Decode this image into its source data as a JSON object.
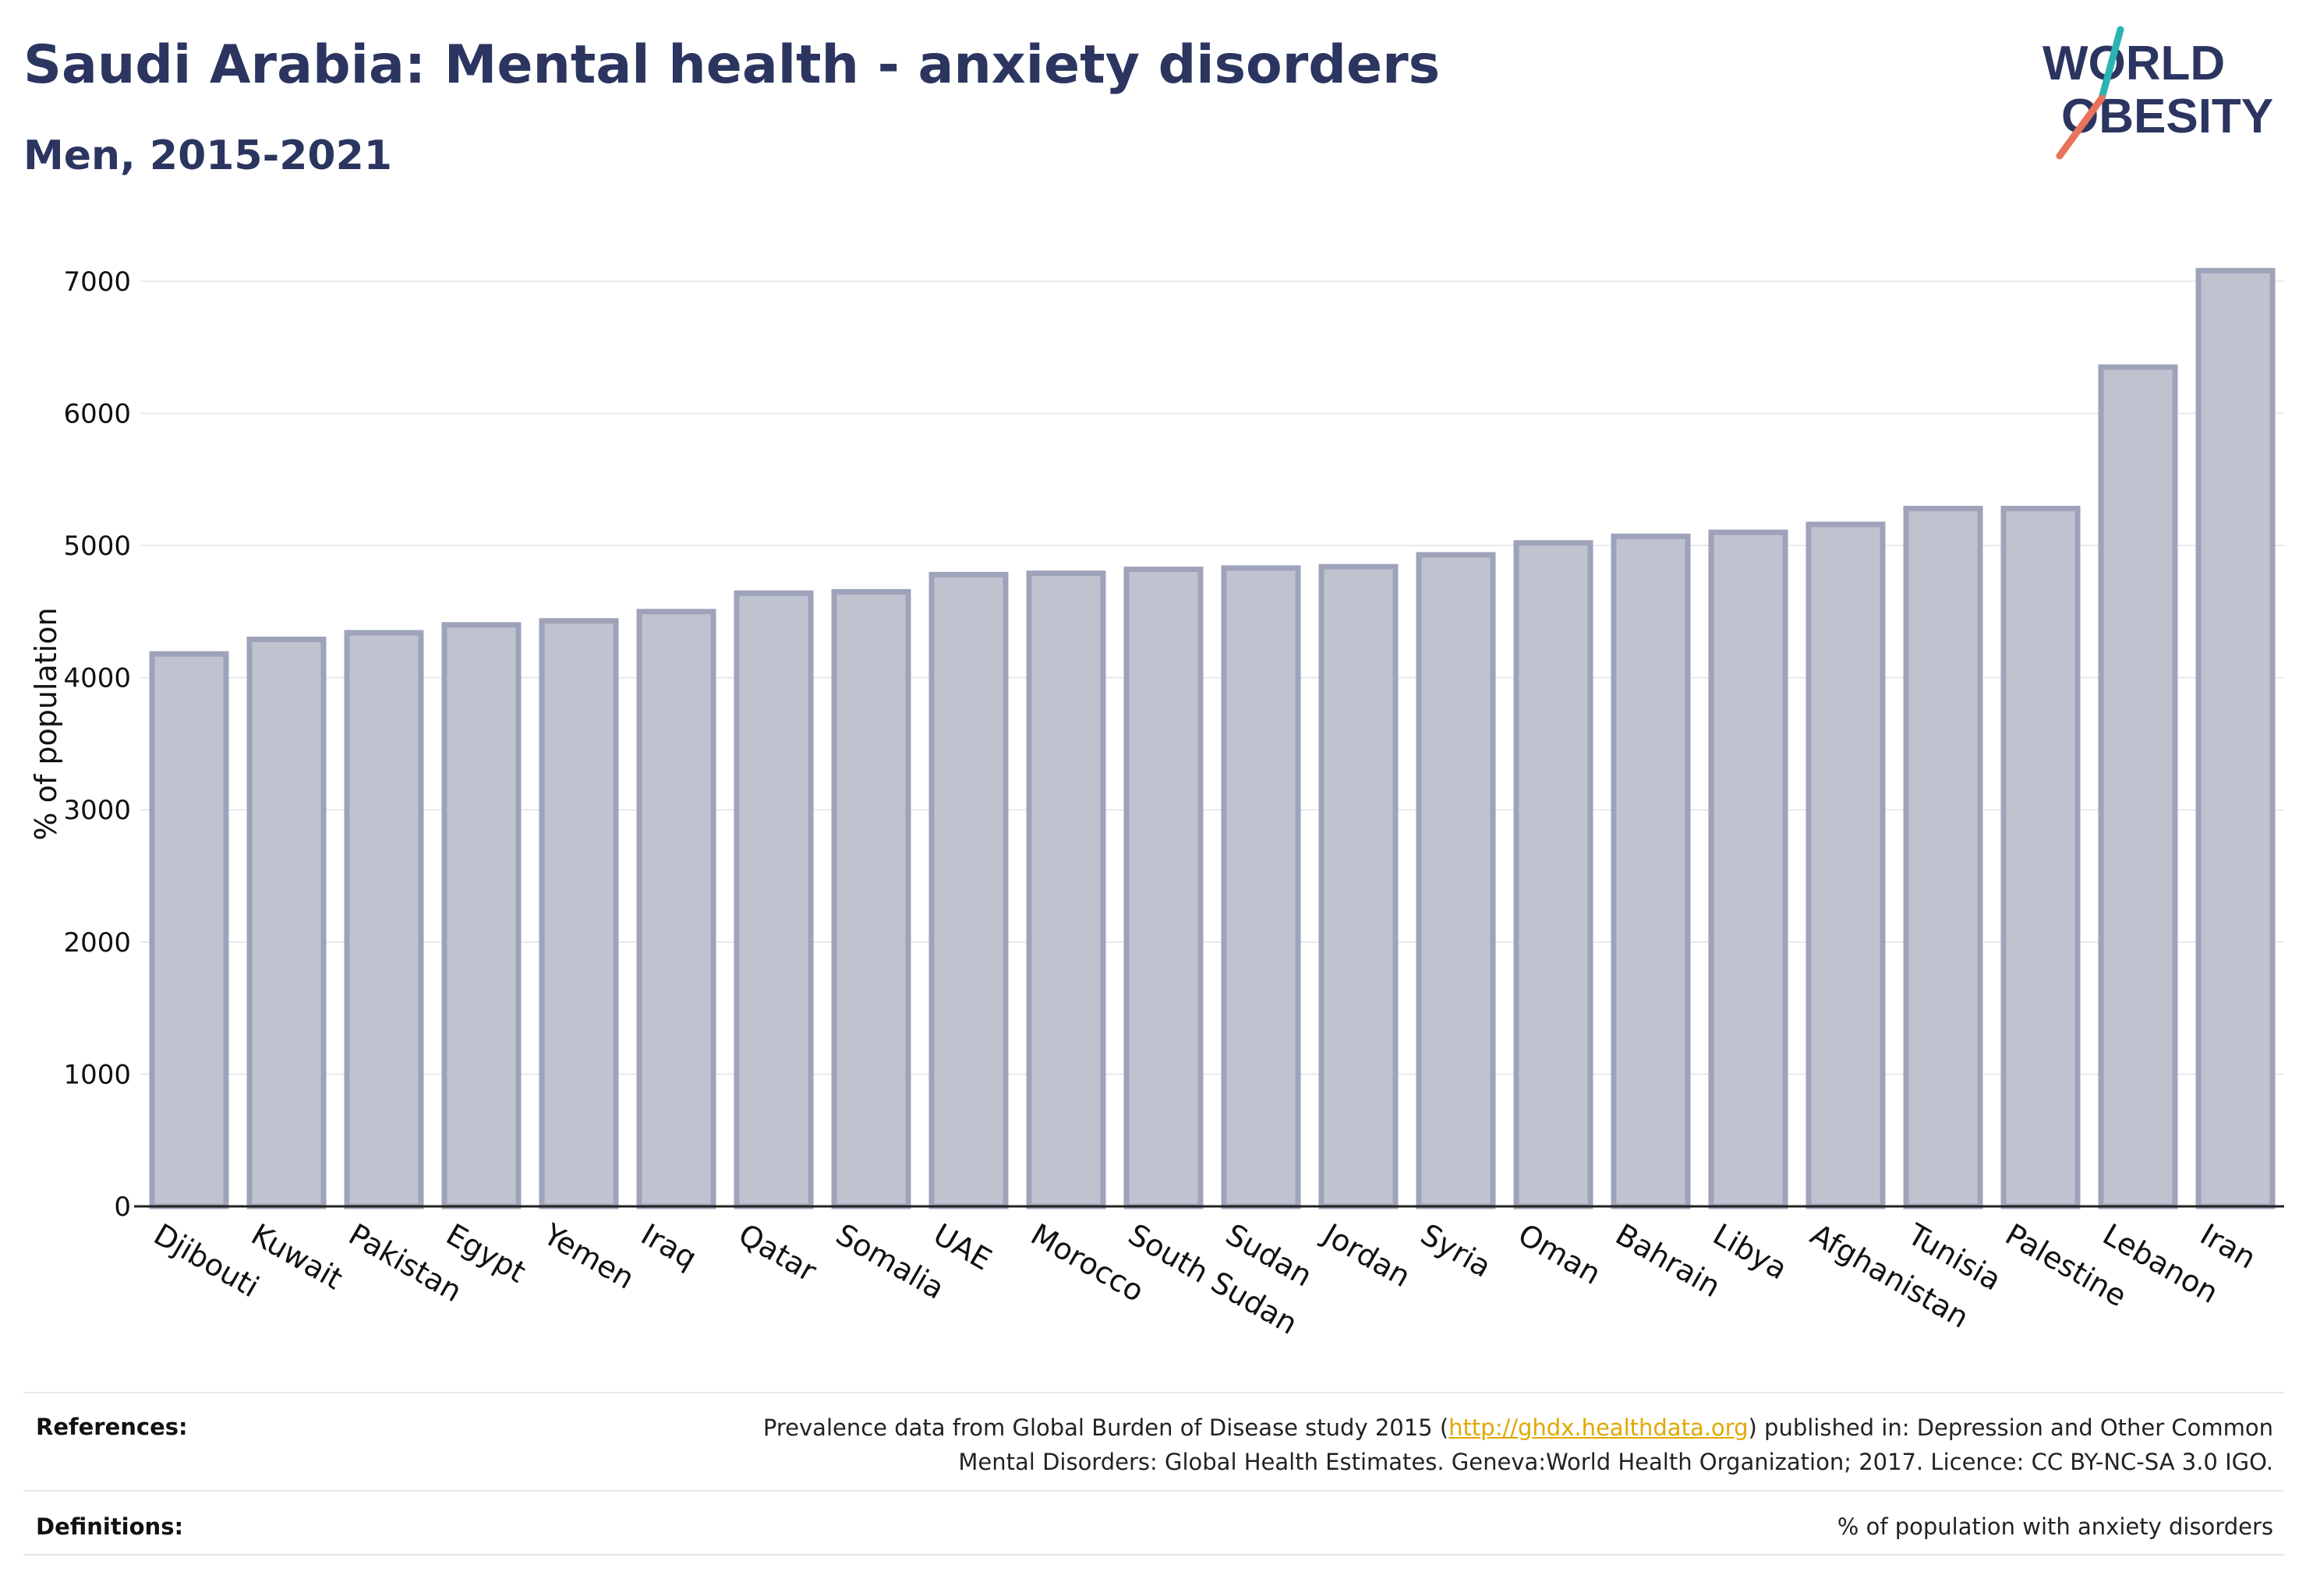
{
  "header": {
    "title": "Saudi Arabia: Mental health - anxiety disorders",
    "subtitle": "Men, 2015-2021"
  },
  "logo": {
    "line1": "WORLD",
    "line2": "OBESITY",
    "slash_colors": [
      "#2bb3b1",
      "#e8735a"
    ]
  },
  "footer": {
    "references_label": "References:",
    "references_pre": "Prevalence data from Global Burden of Disease study 2015 (",
    "references_link": "http://ghdx.healthdata.org",
    "references_post": ") published in: Depression and Other Common",
    "references_line2": "Mental Disorders: Global Health Estimates. Geneva:World Health Organization; 2017. Licence: CC BY-NC-SA 3.0 IGO.",
    "definitions_label": "Definitions:",
    "definitions_text": "% of population with anxiety disorders"
  },
  "chart_data": {
    "type": "bar",
    "title": "Saudi Arabia: Mental health - anxiety disorders",
    "subtitle": "Men, 2015-2021",
    "xlabel": "",
    "ylabel": "% of population",
    "ylim": [
      0,
      7300
    ],
    "yticks": [
      0,
      1000,
      2000,
      3000,
      4000,
      5000,
      6000,
      7000
    ],
    "grid": true,
    "bar_color": "#bfc3d0",
    "bar_edge_color": "#9ea3ba",
    "categories": [
      "Djibouti",
      "Kuwait",
      "Pakistan",
      "Egypt",
      "Yemen",
      "Iraq",
      "Qatar",
      "Somalia",
      "UAE",
      "Morocco",
      "South Sudan",
      "Sudan",
      "Jordan",
      "Syria",
      "Oman",
      "Bahrain",
      "Libya",
      "Afghanistan",
      "Tunisia",
      "Palestine",
      "Lebanon",
      "Iran"
    ],
    "values": [
      4180,
      4290,
      4340,
      4400,
      4430,
      4500,
      4640,
      4650,
      4780,
      4790,
      4820,
      4830,
      4840,
      4930,
      5020,
      5070,
      5100,
      5160,
      5280,
      5280,
      6350,
      7080
    ]
  }
}
